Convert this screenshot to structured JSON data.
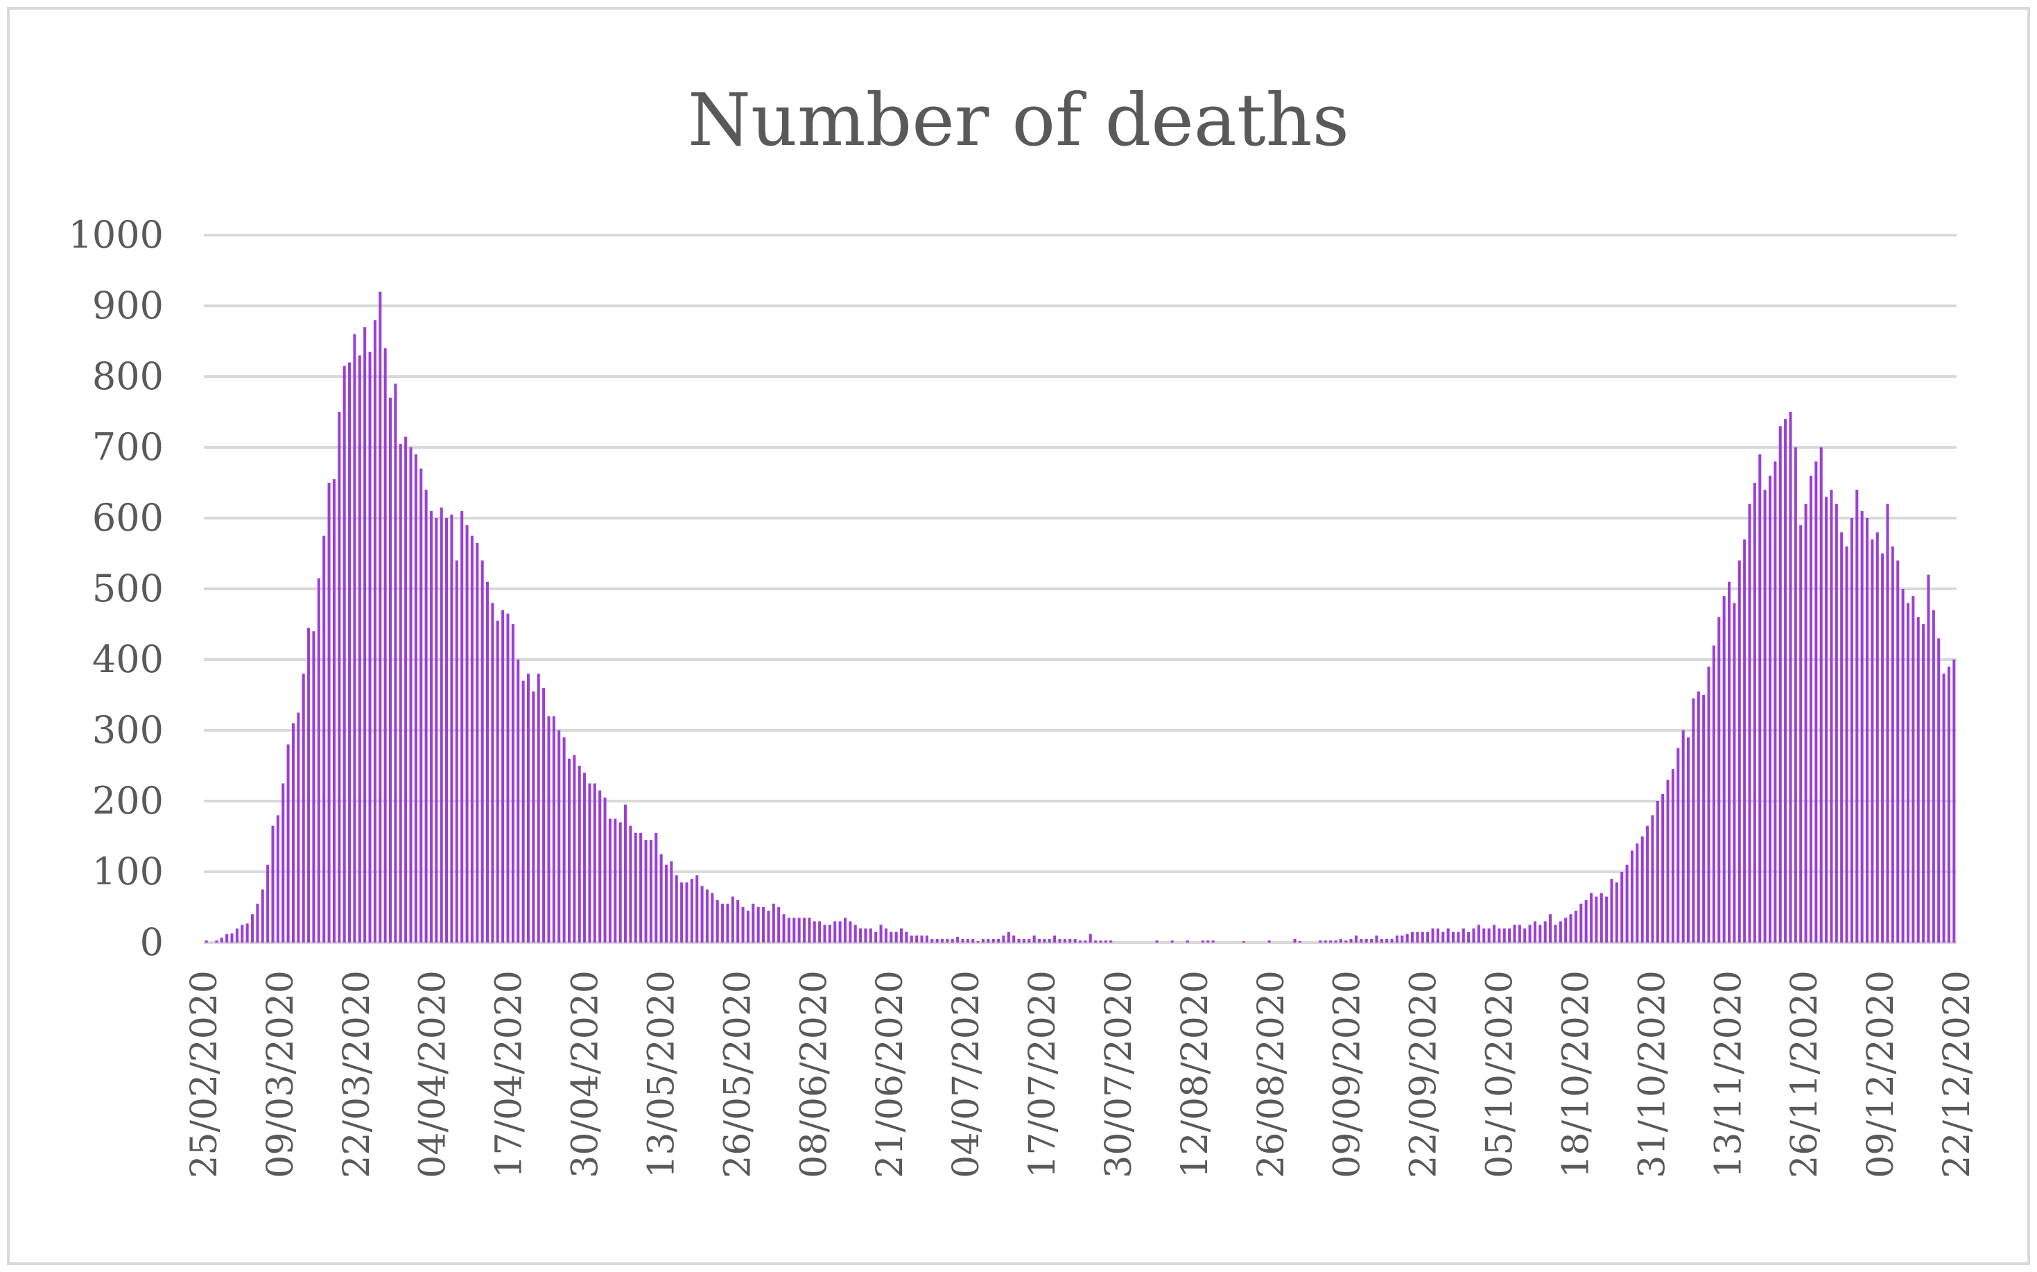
{
  "chart_data": {
    "type": "bar",
    "title": "Number of deaths",
    "xlabel": "",
    "ylabel": "",
    "ylim": [
      0,
      1000
    ],
    "yticks": [
      0,
      100,
      200,
      300,
      400,
      500,
      600,
      700,
      800,
      900,
      1000
    ],
    "xtick_labels": [
      "25/02/2020",
      "09/03/2020",
      "22/03/2020",
      "04/04/2020",
      "17/04/2020",
      "30/04/2020",
      "13/05/2020",
      "26/05/2020",
      "08/06/2020",
      "21/06/2020",
      "04/07/2020",
      "17/07/2020",
      "30/07/2020",
      "12/08/2020",
      "26/08/2020",
      "09/09/2020",
      "22/09/2020",
      "05/10/2020",
      "18/10/2020",
      "31/10/2020",
      "13/11/2020",
      "26/11/2020",
      "09/12/2020",
      "22/12/2020"
    ],
    "grid": true,
    "legend": "none",
    "bar_color": "#9b3fd6",
    "series": [
      {
        "values": [
          3,
          0,
          3,
          7,
          12,
          13,
          20,
          25,
          27,
          40,
          55,
          75,
          110,
          165,
          180,
          225,
          280,
          310,
          325,
          380,
          445,
          440,
          515,
          575,
          650,
          655,
          750,
          815,
          820,
          860,
          830,
          870,
          835,
          880,
          920,
          840,
          770,
          790,
          705,
          715,
          700,
          690,
          670,
          640,
          610,
          600,
          615,
          600,
          605,
          540,
          610,
          590,
          575,
          565,
          540,
          510,
          480,
          455,
          470,
          465,
          450,
          400,
          370,
          380,
          355,
          380,
          360,
          320,
          320,
          300,
          290,
          260,
          265,
          250,
          240,
          225,
          225,
          215,
          205,
          175,
          175,
          170,
          195,
          165,
          155,
          155,
          145,
          145,
          155,
          125,
          110,
          115,
          95,
          85,
          85,
          90,
          95,
          80,
          75,
          70,
          60,
          55,
          55,
          65,
          60,
          50,
          45,
          55,
          50,
          50,
          45,
          55,
          50,
          40,
          35,
          35,
          35,
          35,
          35,
          30,
          30,
          25,
          25,
          30,
          30,
          35,
          30,
          25,
          20,
          20,
          20,
          15,
          25,
          20,
          15,
          15,
          20,
          15,
          10,
          10,
          10,
          10,
          5,
          5,
          5,
          5,
          5,
          8,
          5,
          5,
          5,
          2,
          5,
          5,
          5,
          5,
          10,
          15,
          10,
          5,
          5,
          5,
          10,
          5,
          5,
          5,
          10,
          5,
          5,
          5,
          5,
          3,
          3,
          12,
          3,
          3,
          3,
          3,
          0,
          0,
          0,
          0,
          0,
          0,
          0,
          0,
          3,
          0,
          0,
          3,
          0,
          0,
          3,
          0,
          0,
          3,
          3,
          3,
          0,
          0,
          0,
          0,
          0,
          2,
          0,
          0,
          0,
          0,
          3,
          0,
          0,
          0,
          0,
          5,
          2,
          0,
          0,
          0,
          3,
          3,
          3,
          3,
          5,
          3,
          5,
          10,
          5,
          5,
          5,
          10,
          5,
          5,
          5,
          10,
          10,
          12,
          15,
          15,
          15,
          15,
          20,
          20,
          15,
          20,
          15,
          15,
          20,
          15,
          20,
          25,
          20,
          20,
          25,
          20,
          20,
          20,
          25,
          25,
          20,
          25,
          30,
          25,
          30,
          40,
          25,
          30,
          35,
          40,
          45,
          55,
          60,
          70,
          65,
          70,
          65,
          90,
          85,
          100,
          110,
          130,
          140,
          150,
          165,
          180,
          200,
          210,
          230,
          245,
          275,
          300,
          290,
          345,
          355,
          350,
          390,
          420,
          460,
          490,
          510,
          480,
          540,
          570,
          620,
          650,
          690,
          640,
          660,
          680,
          730,
          740,
          750,
          700,
          590,
          620,
          660,
          680,
          700,
          630,
          640,
          620,
          580,
          560,
          600,
          640,
          610,
          600,
          570,
          580,
          550,
          620,
          560,
          540,
          500,
          480,
          490,
          460,
          450,
          520,
          470,
          430,
          380,
          390,
          400
        ]
      }
    ]
  }
}
